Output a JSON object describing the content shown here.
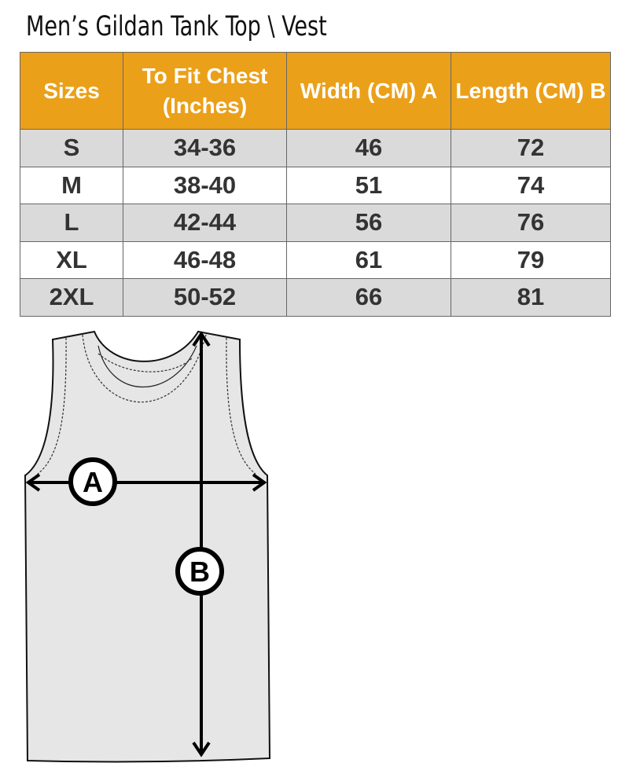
{
  "title": "Men’s Gildan Tank Top \\ Vest",
  "table": {
    "headers": [
      "Sizes",
      "To Fit Chest (Inches)",
      "Width (CM) A",
      "Length  (CM) B"
    ],
    "rows": [
      [
        "S",
        "34-36",
        "46",
        "72"
      ],
      [
        "M",
        "38-40",
        "51",
        "74"
      ],
      [
        "L",
        "42-44",
        "56",
        "76"
      ],
      [
        "XL",
        "46-48",
        "61",
        "79"
      ],
      [
        "2XL",
        "50-52",
        "66",
        "81"
      ]
    ]
  },
  "diagram": {
    "label_a": "A",
    "label_b": "B"
  },
  "colors": {
    "header_bg": "#eba01a",
    "stripe": "#dadada"
  }
}
